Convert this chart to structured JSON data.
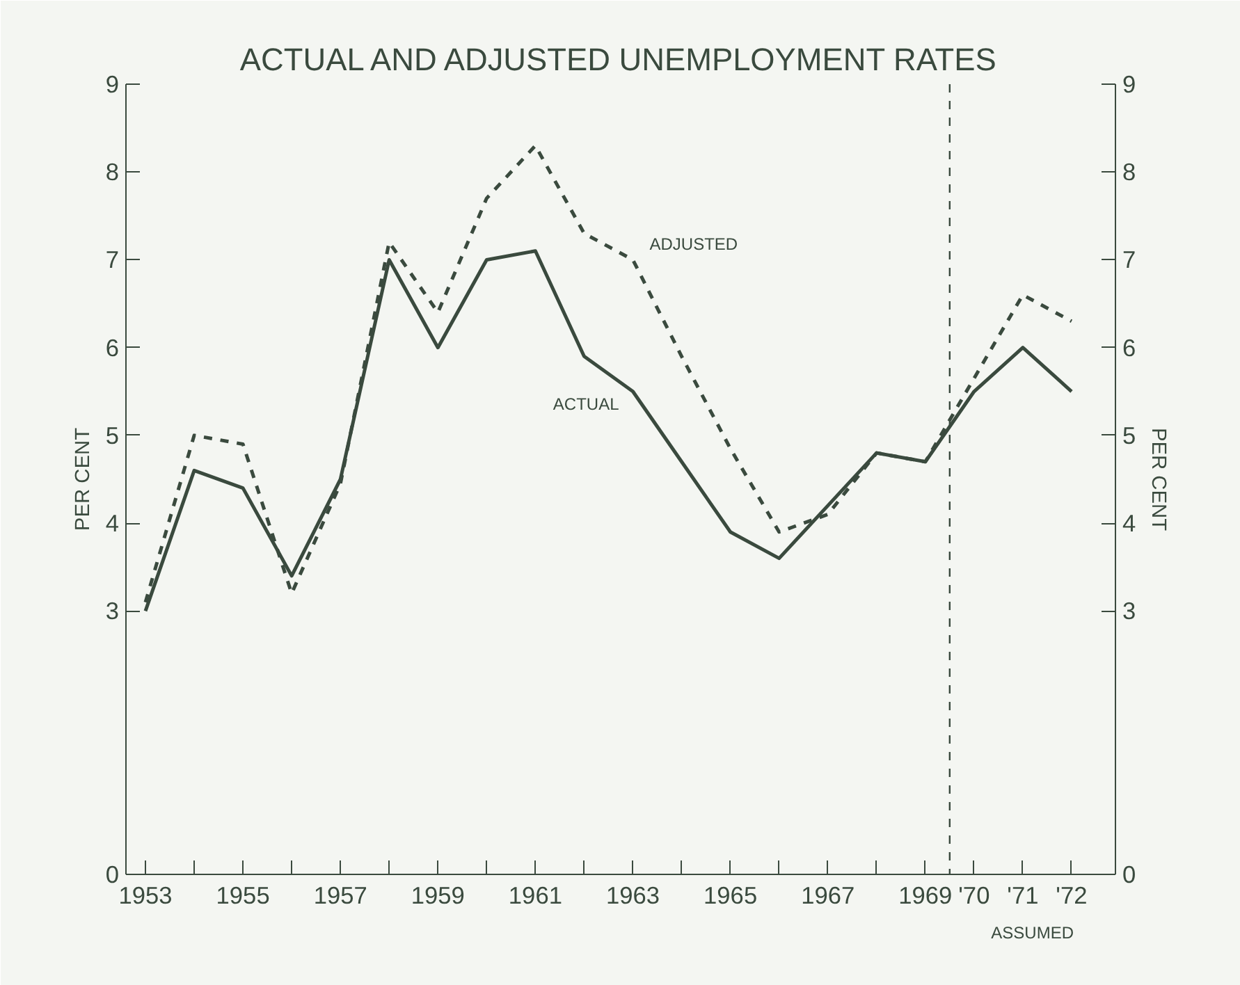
{
  "chart_data": {
    "type": "line",
    "title": "ACTUAL AND ADJUSTED UNEMPLOYMENT RATES",
    "ylabel": "PER CENT",
    "y2label": "PER CENT",
    "x": [
      1953,
      1954,
      1955,
      1956,
      1957,
      1958,
      1959,
      1960,
      1961,
      1962,
      1963,
      1964,
      1965,
      1966,
      1967,
      1968,
      1969,
      1970,
      1971,
      1972
    ],
    "series": [
      {
        "name": "ACTUAL",
        "color": "#3a4a3e",
        "line_style": "solid",
        "values": [
          3.0,
          4.6,
          4.4,
          3.4,
          4.5,
          7.0,
          6.0,
          7.0,
          7.1,
          5.9,
          5.5,
          4.7,
          3.9,
          3.6,
          4.2,
          4.8,
          4.7,
          5.5,
          6.0,
          5.5
        ]
      },
      {
        "name": "ADJUSTED",
        "color": "#3a4a3e",
        "line_style": "dashed",
        "values": [
          3.1,
          5.0,
          4.9,
          3.2,
          4.45,
          7.2,
          6.4,
          7.7,
          8.3,
          7.3,
          7.0,
          5.9,
          4.85,
          3.9,
          4.1,
          4.8,
          4.7,
          5.65,
          6.6,
          6.3
        ]
      }
    ],
    "xlim": [
      1952.6,
      1972.9
    ],
    "xticks": [
      1953,
      {
        "value": 1954,
        "label": null
      },
      1955,
      {
        "value": 1956,
        "label": null
      },
      1957,
      {
        "value": 1958,
        "label": null
      },
      1959,
      {
        "value": 1960,
        "label": null
      },
      1961,
      {
        "value": 1962,
        "label": null
      },
      1963,
      {
        "value": 1964,
        "label": null
      },
      1965,
      {
        "value": 1966,
        "label": null
      },
      1967,
      {
        "value": 1968,
        "label": null
      },
      1969,
      {
        "value": 1970,
        "label": "'70"
      },
      {
        "value": 1971,
        "label": "'71"
      },
      {
        "value": 1972,
        "label": "'72"
      }
    ],
    "ylim": [
      0,
      9
    ],
    "yticks": [
      0,
      3,
      4,
      5,
      6,
      7,
      8,
      9
    ],
    "y2lim": [
      0,
      9
    ],
    "y2ticks": [
      0,
      3,
      4,
      5,
      6,
      7,
      8,
      9
    ],
    "ref_lines": [
      {
        "axis": "x",
        "value": 1969.5,
        "line_style": "dashed",
        "color": "#3a4a3e"
      }
    ],
    "annotations": [
      "ASSUMED"
    ],
    "grid": false,
    "legend": false,
    "marker": "none"
  }
}
